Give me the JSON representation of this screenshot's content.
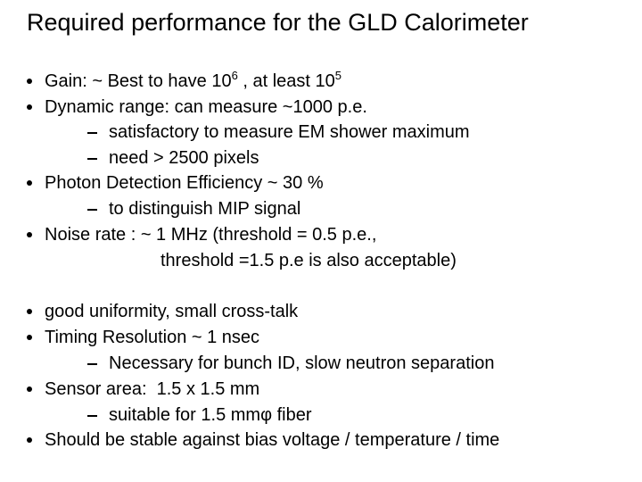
{
  "title": "Required performance for the GLD Calorimeter",
  "bullets": [
    {
      "text": "Gain: ~ Best to have 10",
      "sup": "6",
      "text_2": " , at least 10",
      "sup_2": "5"
    },
    {
      "text": "Dynamic range: can measure ~1000 p.e.",
      "subitems": [
        "satisfactory to measure EM shower maximum",
        "need > 2500 pixels"
      ]
    },
    {
      "text": "Photon Detection Efficiency ~ 30 %",
      "subitems": [
        "to distinguish MIP signal"
      ]
    },
    {
      "text": "Noise rate : ~ 1 MHz (threshold = 0.5 p.e.,",
      "continuation": "threshold =1.5 p.e is also acceptable)"
    },
    {
      "text": "good uniformity, small cross-talk"
    },
    {
      "text": "Timing Resolution ~ 1 nsec",
      "subitems": [
        "Necessary for bunch ID, slow neutron separation"
      ]
    },
    {
      "text": "Sensor area:  1.5 x 1.5 mm",
      "subitems": [
        "suitable for 1.5 mmφ fiber"
      ]
    },
    {
      "text": "Should be stable against bias voltage / temperature / time"
    }
  ]
}
